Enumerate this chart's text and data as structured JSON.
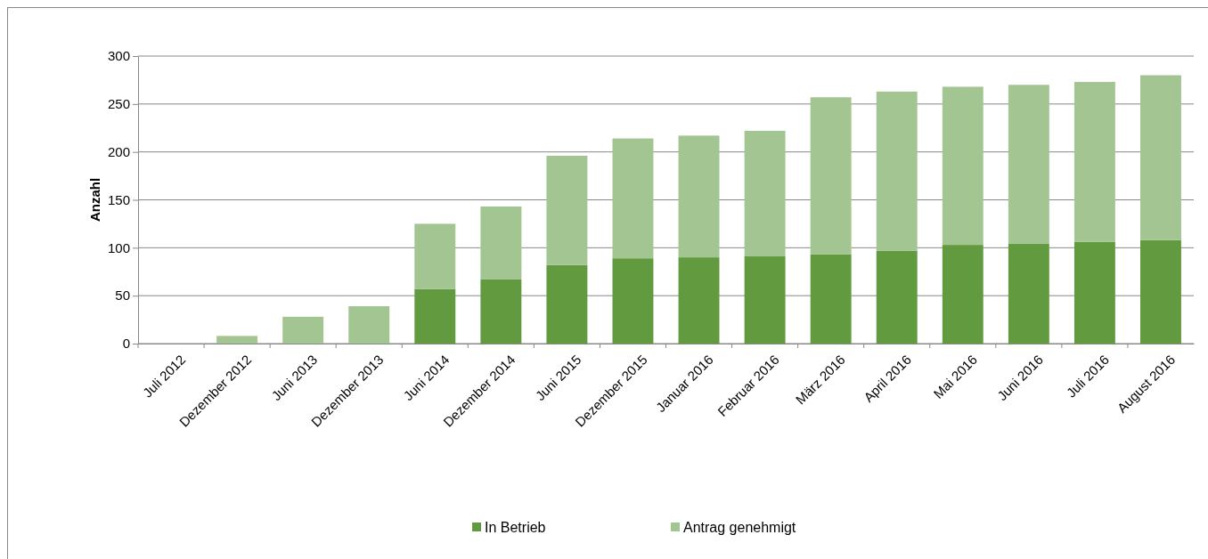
{
  "chart_data": {
    "type": "bar",
    "stacked": true,
    "ylabel": "Anzahl",
    "categories": [
      "Juli 2012",
      "Dezember 2012",
      "Juni 2013",
      "Dezember 2013",
      "Juni 2014",
      "Dezember 2014",
      "Juni 2015",
      "Dezember 2015",
      "Januar 2016",
      "Februar 2016",
      "März 2016",
      "April 2016",
      "Mai 2016",
      "Juni 2016",
      "Juli 2016",
      "August 2016"
    ],
    "series": [
      {
        "name": "In Betrieb",
        "color": "#629b3f",
        "values": [
          0,
          0,
          0,
          0,
          57,
          67,
          82,
          89,
          90,
          91,
          93,
          97,
          103,
          104,
          106,
          108
        ]
      },
      {
        "name": "Antrag genehmigt",
        "color": "#a2c592",
        "values": [
          0,
          8,
          28,
          39,
          68,
          76,
          114,
          125,
          127,
          131,
          164,
          166,
          165,
          166,
          167,
          172
        ]
      }
    ],
    "ylim": [
      0,
      300
    ],
    "yticks": [
      0,
      50,
      100,
      150,
      200,
      250,
      300
    ],
    "grid": "y",
    "legend": "bottom"
  }
}
